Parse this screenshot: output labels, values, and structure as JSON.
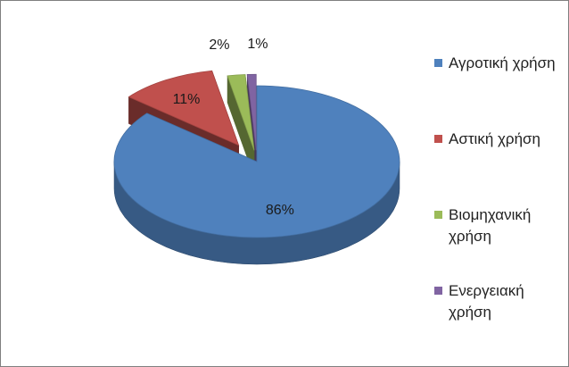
{
  "chart_data": {
    "type": "pie",
    "style": "3d-exploded",
    "categories": [
      "Αγροτική χρήση",
      "Αστική χρήση",
      "Βιομηχανική χρήση",
      "Ενεργειακή χρήση"
    ],
    "values": [
      86,
      11,
      2,
      1
    ],
    "labels": [
      "86%",
      "11%",
      "2%",
      "1%"
    ],
    "colors": [
      "#4f81bd",
      "#c0504d",
      "#9bbb59",
      "#8064a2"
    ],
    "legend_position": "right"
  },
  "legend": {
    "items": [
      {
        "label": "Αγροτική χρήση",
        "color": "#4f81bd"
      },
      {
        "label": "Αστική χρήση",
        "color": "#c0504d"
      },
      {
        "label": "Βιομηχανική χρήση",
        "color": "#9bbb59"
      },
      {
        "label": "Ενεργειακή χρήση",
        "color": "#8064a2"
      }
    ]
  }
}
